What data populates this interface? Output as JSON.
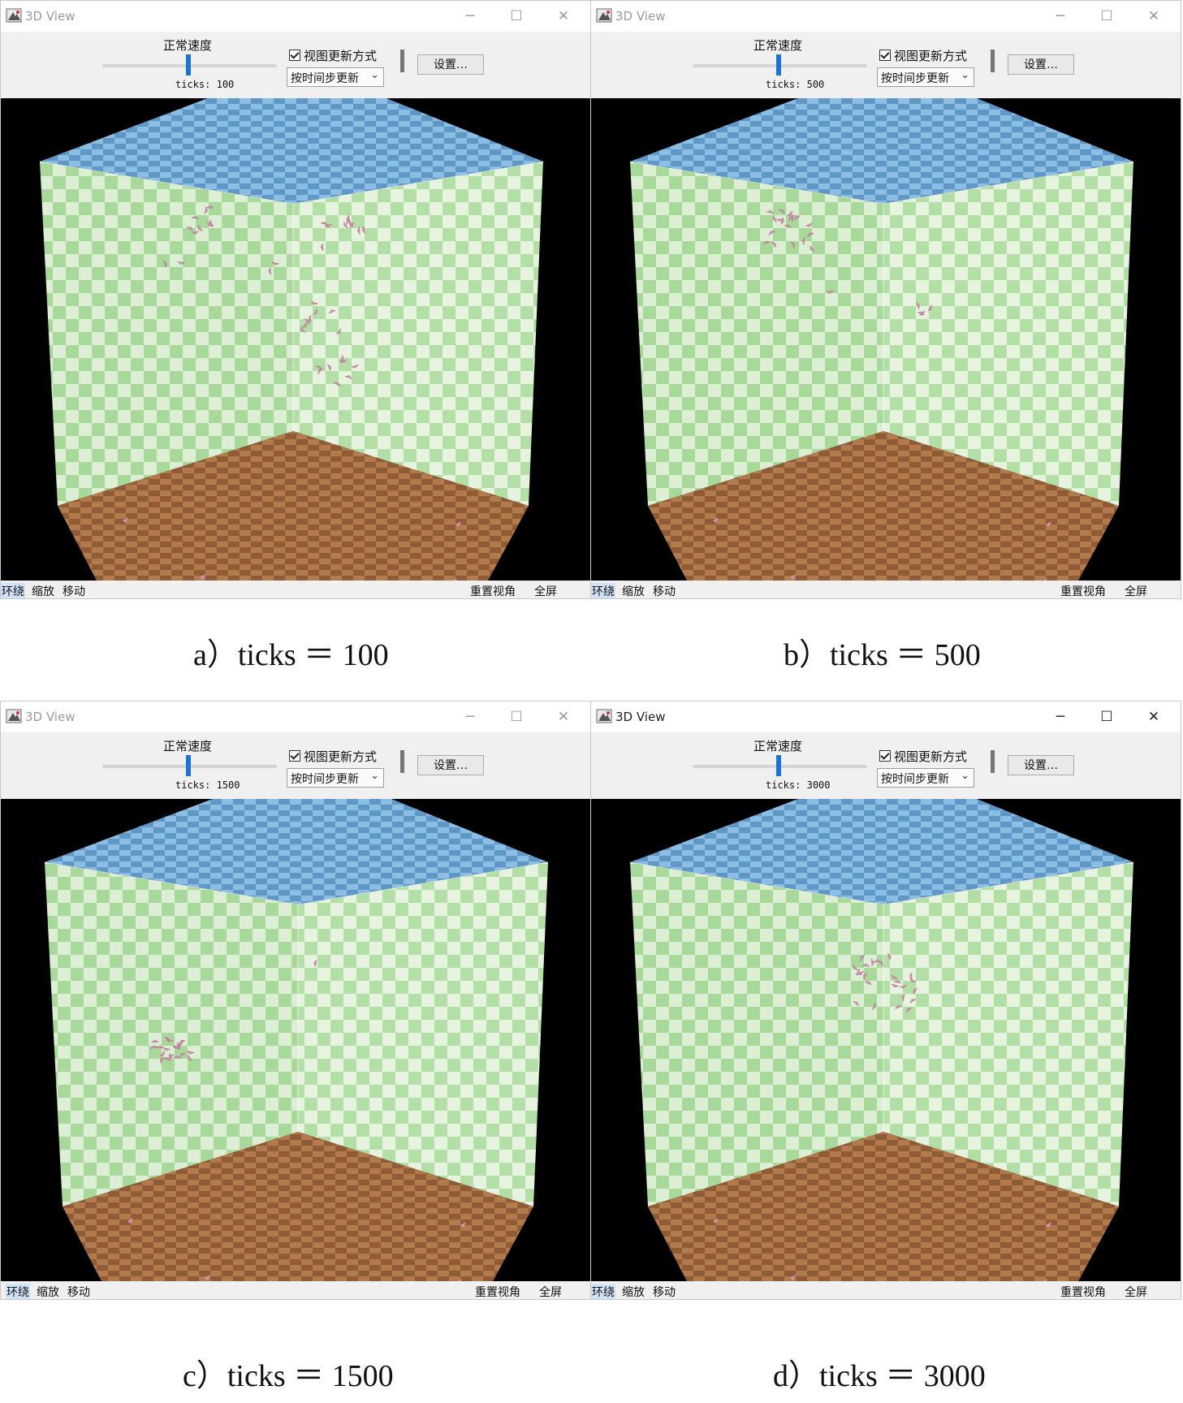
{
  "colors": {
    "wall": "#a8d89a",
    "ceiling": "#6aa2cf",
    "floor": "#a0673f",
    "agent": "#d790b0",
    "slider": "#1a73d9"
  },
  "panels": [
    {
      "window_title": "3D View",
      "speed_label": "正常速度",
      "ticks_label": "ticks:",
      "ticks_value": "100",
      "checkbox_label": "视图更新方式",
      "dropdown_value": "按时间步更新",
      "settings_label": "设置…",
      "status_left": [
        "环绕",
        "缩放",
        "移动"
      ],
      "status_right": [
        "重置视角",
        "全屏"
      ],
      "caption": "a）ticks ＝ 100"
    },
    {
      "window_title": "3D View",
      "speed_label": "正常速度",
      "ticks_label": "ticks:",
      "ticks_value": "500",
      "checkbox_label": "视图更新方式",
      "dropdown_value": "按时间步更新",
      "settings_label": "设置…",
      "status_left": [
        "环绕",
        "缩放",
        "移动"
      ],
      "status_right": [
        "重置视角",
        "全屏"
      ],
      "caption": "b）ticks ＝ 500"
    },
    {
      "window_title": "3D View",
      "speed_label": "正常速度",
      "ticks_label": "ticks:",
      "ticks_value": "1500",
      "checkbox_label": "视图更新方式",
      "dropdown_value": "按时间步更新",
      "settings_label": "设置…",
      "status_left": [
        "环绕",
        "缩放",
        "移动"
      ],
      "status_right": [
        "重置视角",
        "全屏"
      ],
      "caption": "c）ticks ＝ 1500"
    },
    {
      "window_title": "3D View",
      "speed_label": "正常速度",
      "ticks_label": "ticks:",
      "ticks_value": "3000",
      "checkbox_label": "视图更新方式",
      "dropdown_value": "按时间步更新",
      "settings_label": "设置…",
      "status_left": [
        "环绕",
        "缩放",
        "移动"
      ],
      "status_right": [
        "重置视角",
        "全屏"
      ],
      "caption": "d）ticks ＝ 3000"
    }
  ]
}
